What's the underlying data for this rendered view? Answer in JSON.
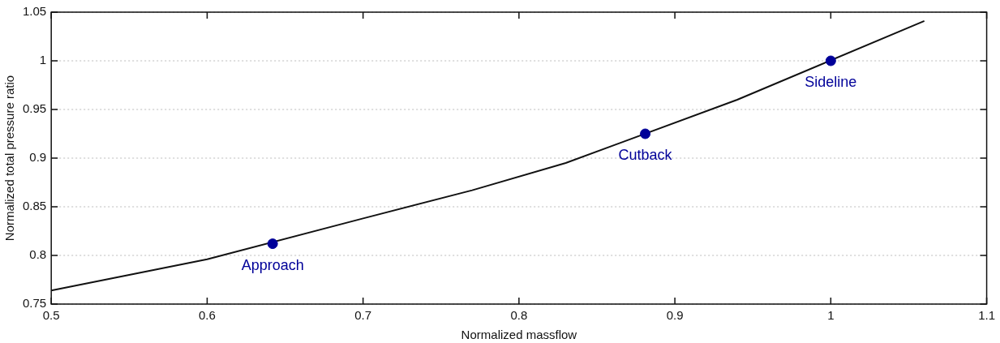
{
  "chart_data": {
    "type": "line",
    "xlabel": "Normalized massflow",
    "ylabel": "Normalized total pressure ratio",
    "xlim": [
      0.5,
      1.1
    ],
    "xticks": [
      0.5,
      0.6,
      0.7,
      0.8,
      0.9,
      1,
      1.1
    ],
    "ylim": [
      0.75,
      1.05
    ],
    "yticks": [
      0.75,
      0.8,
      0.85,
      0.9,
      0.95,
      1,
      1.05
    ],
    "grid": "y",
    "legend": false,
    "series": [
      {
        "color": "#111111",
        "marker": "none",
        "line_style": "solid",
        "x": [
          0.5,
          0.6,
          0.7,
          0.77,
          0.83,
          0.94,
          1.06
        ],
        "values": [
          0.764,
          0.796,
          0.838,
          0.867,
          0.895,
          0.96,
          1.041
        ]
      },
      {
        "type": "scatter",
        "color": "#000099",
        "marker": "circle",
        "x": [
          0.642,
          0.881,
          1.0
        ],
        "values": [
          0.812,
          0.925,
          1.0
        ]
      }
    ],
    "annotations": [
      {
        "text": "Approach",
        "x": 0.642,
        "y": 0.812
      },
      {
        "text": "Cutback",
        "x": 0.881,
        "y": 0.925
      },
      {
        "text": "Sideline",
        "x": 1.0,
        "y": 1.0
      }
    ]
  }
}
